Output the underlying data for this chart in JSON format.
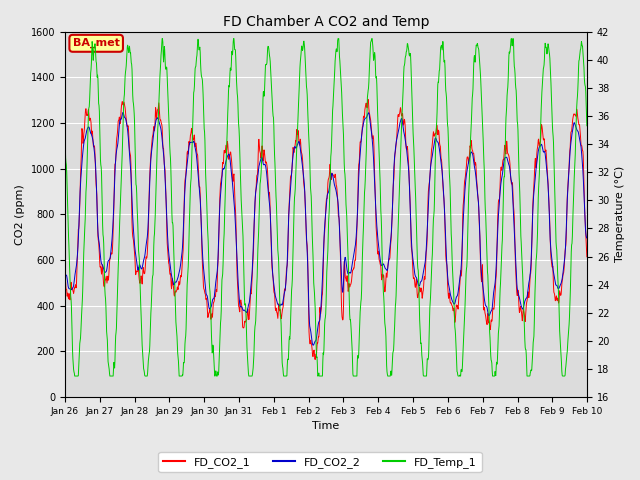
{
  "title": "FD Chamber A CO2 and Temp",
  "xlabel": "Time",
  "ylabel_left": "CO2 (ppm)",
  "ylabel_right": "Temperature (°C)",
  "ylim_left": [
    0,
    1600
  ],
  "ylim_right": [
    16,
    42
  ],
  "y2_ticks": [
    16,
    18,
    20,
    22,
    24,
    26,
    28,
    30,
    32,
    34,
    36,
    38,
    40,
    42
  ],
  "y1_ticks": [
    0,
    200,
    400,
    600,
    800,
    1000,
    1200,
    1400,
    1600
  ],
  "xtick_labels": [
    "Jan 26",
    "Jan 27",
    "Jan 28",
    "Jan 29",
    "Jan 30",
    "Jan 31",
    "Feb 1",
    "Feb 2",
    "Feb 3",
    "Feb 4",
    "Feb 5",
    "Feb 6",
    "Feb 7",
    "Feb 8",
    "Feb 9",
    "Feb 10"
  ],
  "color_co2_1": "#ff0000",
  "color_co2_2": "#0000cc",
  "color_temp": "#00cc00",
  "fig_facecolor": "#e8e8e8",
  "plot_bg_color": "#dcdcdc",
  "legend_items": [
    "FD_CO2_1",
    "FD_CO2_2",
    "FD_Temp_1"
  ],
  "annotation_text": "BA_met",
  "annotation_bg": "#ffff99",
  "annotation_border": "#cc0000"
}
